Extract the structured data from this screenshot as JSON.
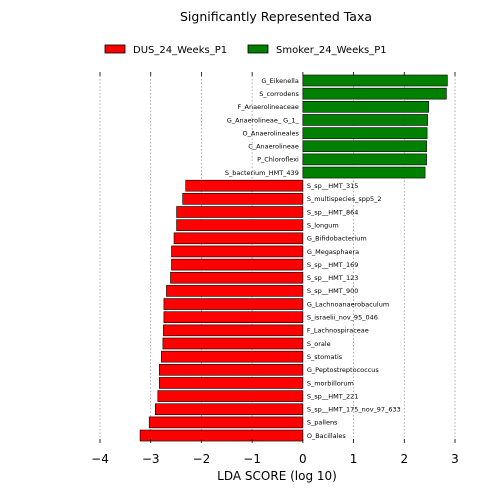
{
  "chart_data": {
    "type": "bar",
    "orientation": "horizontal",
    "title": "Significantly Represented Taxa",
    "xlabel": "LDA SCORE (log 10)",
    "ylabel": "",
    "xlim": [
      -4,
      3
    ],
    "xticks": [
      "−4",
      "−3",
      "−2",
      "−1",
      "0",
      "1",
      "2",
      "3"
    ],
    "grid": "vertical dotted",
    "legend_position": "top",
    "series": [
      {
        "name": "DUS_24_Weeks_P1",
        "color": "#ff0000"
      },
      {
        "name": "Smoker_24_Weeks_P1",
        "color": "#008000"
      }
    ],
    "bars": [
      {
        "label": "G_Eikenella",
        "value": 2.85,
        "group": 1
      },
      {
        "label": "S_corrodens",
        "value": 2.83,
        "group": 1
      },
      {
        "label": "F_Anaerolineaceae",
        "value": 2.48,
        "group": 1
      },
      {
        "label": "G_Anaerolineae_ G_1_",
        "value": 2.46,
        "group": 1
      },
      {
        "label": "O_Anaerolineales",
        "value": 2.45,
        "group": 1
      },
      {
        "label": "C_Anaerolineae",
        "value": 2.44,
        "group": 1
      },
      {
        "label": "P_Chloroflexi",
        "value": 2.44,
        "group": 1
      },
      {
        "label": "S_bacterium_HMT_439",
        "value": 2.41,
        "group": 1
      },
      {
        "label": "S_sp__HMT_315",
        "value": -2.31,
        "group": 0
      },
      {
        "label": "S_multispecies_spp5_2",
        "value": -2.37,
        "group": 0
      },
      {
        "label": "S_sp__HMT_864",
        "value": -2.49,
        "group": 0
      },
      {
        "label": "S_longum",
        "value": -2.49,
        "group": 0
      },
      {
        "label": "G_Bifidobacterium",
        "value": -2.54,
        "group": 0
      },
      {
        "label": "G_Megasphaera",
        "value": -2.59,
        "group": 0
      },
      {
        "label": "S_sp__HMT_169",
        "value": -2.59,
        "group": 0
      },
      {
        "label": "S_sp__HMT_123",
        "value": -2.61,
        "group": 0
      },
      {
        "label": "S_sp__HMT_900",
        "value": -2.69,
        "group": 0
      },
      {
        "label": "G_Lachnoanaerobaculum",
        "value": -2.74,
        "group": 0
      },
      {
        "label": "S_israelii_nov_95_046",
        "value": -2.74,
        "group": 0
      },
      {
        "label": "F_Lachnospiraceae",
        "value": -2.75,
        "group": 0
      },
      {
        "label": "S_orale",
        "value": -2.76,
        "group": 0
      },
      {
        "label": "S_stomatis",
        "value": -2.79,
        "group": 0
      },
      {
        "label": "G_Peptostreptococcus",
        "value": -2.83,
        "group": 0
      },
      {
        "label": "S_morbillorum",
        "value": -2.83,
        "group": 0
      },
      {
        "label": "S_sp__HMT_221",
        "value": -2.86,
        "group": 0
      },
      {
        "label": "S_sp__HMT_175_nov_97_633",
        "value": -2.91,
        "group": 0
      },
      {
        "label": "S_pallens",
        "value": -3.03,
        "group": 0
      },
      {
        "label": "O_Bacillales",
        "value": -3.21,
        "group": 0
      }
    ]
  }
}
